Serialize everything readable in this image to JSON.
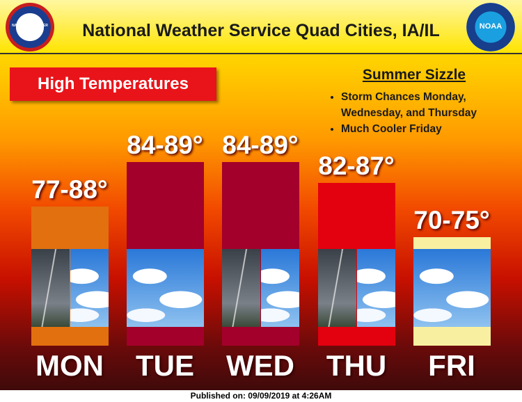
{
  "header": {
    "title": "National Weather Service Quad Cities, IA/IL",
    "left_logo": "NATIONAL WEATHER SERVICE",
    "right_logo": "NOAA"
  },
  "badge": "High Temperatures",
  "notes": {
    "title": "Summer Sizzle",
    "items": [
      "Storm Chances Monday, Wednesday, and Thursday",
      "Much Cooler Friday"
    ]
  },
  "days": [
    {
      "day": "MON",
      "range": "77-88°",
      "color": "#e2700f"
    },
    {
      "day": "TUE",
      "range": "84-89°",
      "color": "#a3002b"
    },
    {
      "day": "WED",
      "range": "84-89°",
      "color": "#a3002b"
    },
    {
      "day": "THU",
      "range": "82-87°",
      "color": "#e3000f"
    },
    {
      "day": "FRI",
      "range": "70-75°",
      "color": "#f8f0a0"
    }
  ],
  "footer": "Published on: 09/09/2019 at 4:26AM"
}
